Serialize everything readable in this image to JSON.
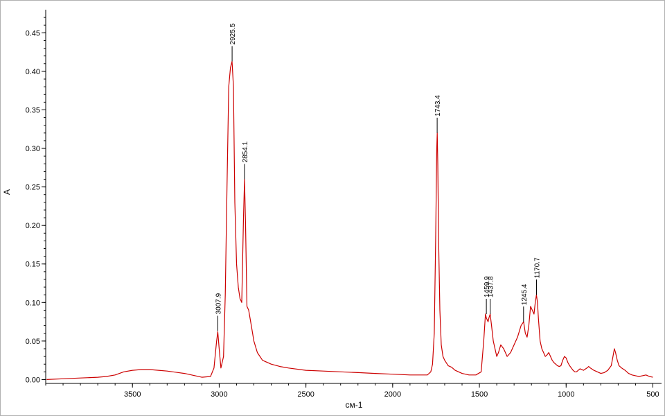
{
  "chart_data": {
    "type": "line",
    "title": "",
    "xlabel": "см-1",
    "ylabel": "A",
    "xlim": [
      4000,
      450
    ],
    "ylim": [
      -0.005,
      0.48
    ],
    "x_reversed": true,
    "grid": false,
    "colors": {
      "series": "#cc0000",
      "axis": "#000000",
      "frame": "#b0b0b0"
    },
    "xticks": [
      3500,
      3000,
      2500,
      2000,
      1500,
      1000,
      500
    ],
    "xtick_labels": [
      "3500",
      "3000",
      "2500",
      "2000",
      "1500",
      "1000",
      "500"
    ],
    "yticks": [
      0.0,
      0.05,
      0.1,
      0.15,
      0.2,
      0.25,
      0.3,
      0.35,
      0.4,
      0.45
    ],
    "ytick_labels": [
      "0.00",
      "0.05",
      "0.10",
      "0.15",
      "0.20",
      "0.25",
      "0.30",
      "0.35",
      "0.40",
      "0.45"
    ],
    "series": [
      {
        "x": [
          3995,
          3900,
          3800,
          3700,
          3650,
          3600,
          3550,
          3500,
          3450,
          3400,
          3350,
          3300,
          3200,
          3100,
          3050,
          3030,
          3015,
          3008,
          3000,
          2990,
          2975,
          2965,
          2955,
          2945,
          2935,
          2926,
          2918,
          2910,
          2900,
          2890,
          2880,
          2870,
          2860,
          2854,
          2848,
          2840,
          2830,
          2815,
          2800,
          2780,
          2750,
          2700,
          2650,
          2600,
          2500,
          2400,
          2300,
          2200,
          2100,
          2000,
          1900,
          1800,
          1780,
          1770,
          1760,
          1752,
          1746,
          1743,
          1740,
          1735,
          1728,
          1720,
          1710,
          1700,
          1680,
          1660,
          1640,
          1600,
          1560,
          1520,
          1490,
          1475,
          1465,
          1460,
          1450,
          1445,
          1438,
          1430,
          1420,
          1410,
          1400,
          1390,
          1377,
          1360,
          1340,
          1320,
          1300,
          1280,
          1260,
          1245,
          1235,
          1225,
          1215,
          1205,
          1195,
          1185,
          1178,
          1171,
          1165,
          1160,
          1150,
          1140,
          1130,
          1120,
          1110,
          1100,
          1090,
          1080,
          1070,
          1060,
          1050,
          1040,
          1030,
          1020,
          1010,
          1000,
          990,
          980,
          970,
          960,
          950,
          940,
          930,
          920,
          900,
          880,
          870,
          860,
          840,
          820,
          800,
          780,
          760,
          740,
          730,
          722,
          715,
          705,
          695,
          680,
          660,
          640,
          620,
          600,
          580,
          560,
          540,
          520,
          500
        ],
        "y": [
          0.0,
          0.001,
          0.002,
          0.003,
          0.004,
          0.006,
          0.01,
          0.012,
          0.013,
          0.013,
          0.012,
          0.011,
          0.008,
          0.003,
          0.004,
          0.015,
          0.05,
          0.062,
          0.04,
          0.015,
          0.03,
          0.11,
          0.25,
          0.38,
          0.405,
          0.413,
          0.38,
          0.23,
          0.15,
          0.12,
          0.105,
          0.1,
          0.21,
          0.26,
          0.2,
          0.095,
          0.09,
          0.07,
          0.05,
          0.035,
          0.025,
          0.02,
          0.017,
          0.015,
          0.012,
          0.011,
          0.01,
          0.009,
          0.008,
          0.007,
          0.006,
          0.006,
          0.01,
          0.02,
          0.06,
          0.18,
          0.3,
          0.32,
          0.28,
          0.18,
          0.09,
          0.045,
          0.03,
          0.025,
          0.018,
          0.016,
          0.012,
          0.008,
          0.006,
          0.006,
          0.01,
          0.05,
          0.085,
          0.08,
          0.075,
          0.08,
          0.085,
          0.07,
          0.05,
          0.04,
          0.03,
          0.035,
          0.045,
          0.04,
          0.03,
          0.035,
          0.045,
          0.055,
          0.07,
          0.075,
          0.06,
          0.055,
          0.07,
          0.095,
          0.09,
          0.085,
          0.1,
          0.11,
          0.1,
          0.08,
          0.05,
          0.04,
          0.035,
          0.03,
          0.032,
          0.035,
          0.03,
          0.025,
          0.022,
          0.02,
          0.018,
          0.017,
          0.018,
          0.025,
          0.03,
          0.028,
          0.022,
          0.018,
          0.015,
          0.012,
          0.01,
          0.01,
          0.012,
          0.014,
          0.012,
          0.015,
          0.017,
          0.015,
          0.012,
          0.01,
          0.008,
          0.009,
          0.012,
          0.018,
          0.03,
          0.04,
          0.035,
          0.025,
          0.018,
          0.015,
          0.012,
          0.008,
          0.006,
          0.005,
          0.004,
          0.005,
          0.006,
          0.004,
          0.003
        ]
      }
    ],
    "annotations": [
      {
        "x": 3007.9,
        "y": 0.063,
        "label": "3007.9"
      },
      {
        "x": 2925.5,
        "y": 0.413,
        "label": "2925.5"
      },
      {
        "x": 2854.1,
        "y": 0.26,
        "label": "2854.1"
      },
      {
        "x": 1743.4,
        "y": 0.32,
        "label": "1743.4"
      },
      {
        "x": 1459.9,
        "y": 0.085,
        "label": "1459.9"
      },
      {
        "x": 1437.8,
        "y": 0.085,
        "label": "1437.8"
      },
      {
        "x": 1245.4,
        "y": 0.075,
        "label": "1245.4"
      },
      {
        "x": 1170.7,
        "y": 0.11,
        "label": "1170.7"
      }
    ]
  }
}
